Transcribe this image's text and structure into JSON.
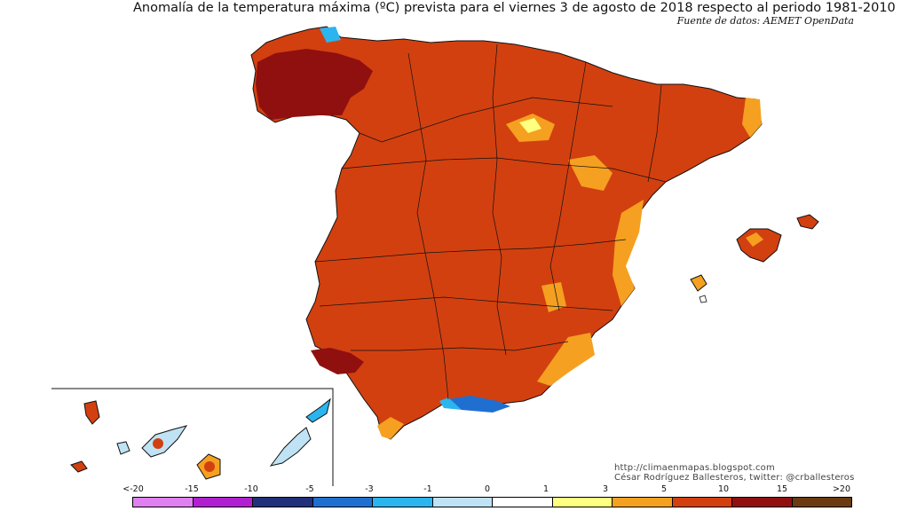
{
  "title": "Anomalía de la temperatura máxima (ºC) prevista para el viernes 3 de agosto de 2018 respecto al periodo 1981-2010",
  "source": "Fuente de datos: AEMET OpenData",
  "credits": [
    "http://climaenmapas.blogspot.com",
    "César Rodríguez Ballesteros, twitter: @crballesteros"
  ],
  "legend": {
    "ticks": [
      "<-20",
      "-15",
      "-10",
      "-5",
      "-3",
      "-1",
      "0",
      "1",
      "3",
      "5",
      "10",
      "15",
      ">20"
    ],
    "colors": [
      "#e080f0",
      "#b020d0",
      "#20307a",
      "#1f6fd0",
      "#2bb5ef",
      "#bfe3f5",
      "#ffffff",
      "#ffff80",
      "#f5a020",
      "#d24010",
      "#901010",
      "#6b3a10"
    ]
  },
  "map_colors": {
    "mainland": "#d24010",
    "hot": "#901010",
    "warm": "#f5a020",
    "mild": "#ffff80",
    "cool": "#2bb5ef",
    "cold": "#1f6fd0"
  }
}
